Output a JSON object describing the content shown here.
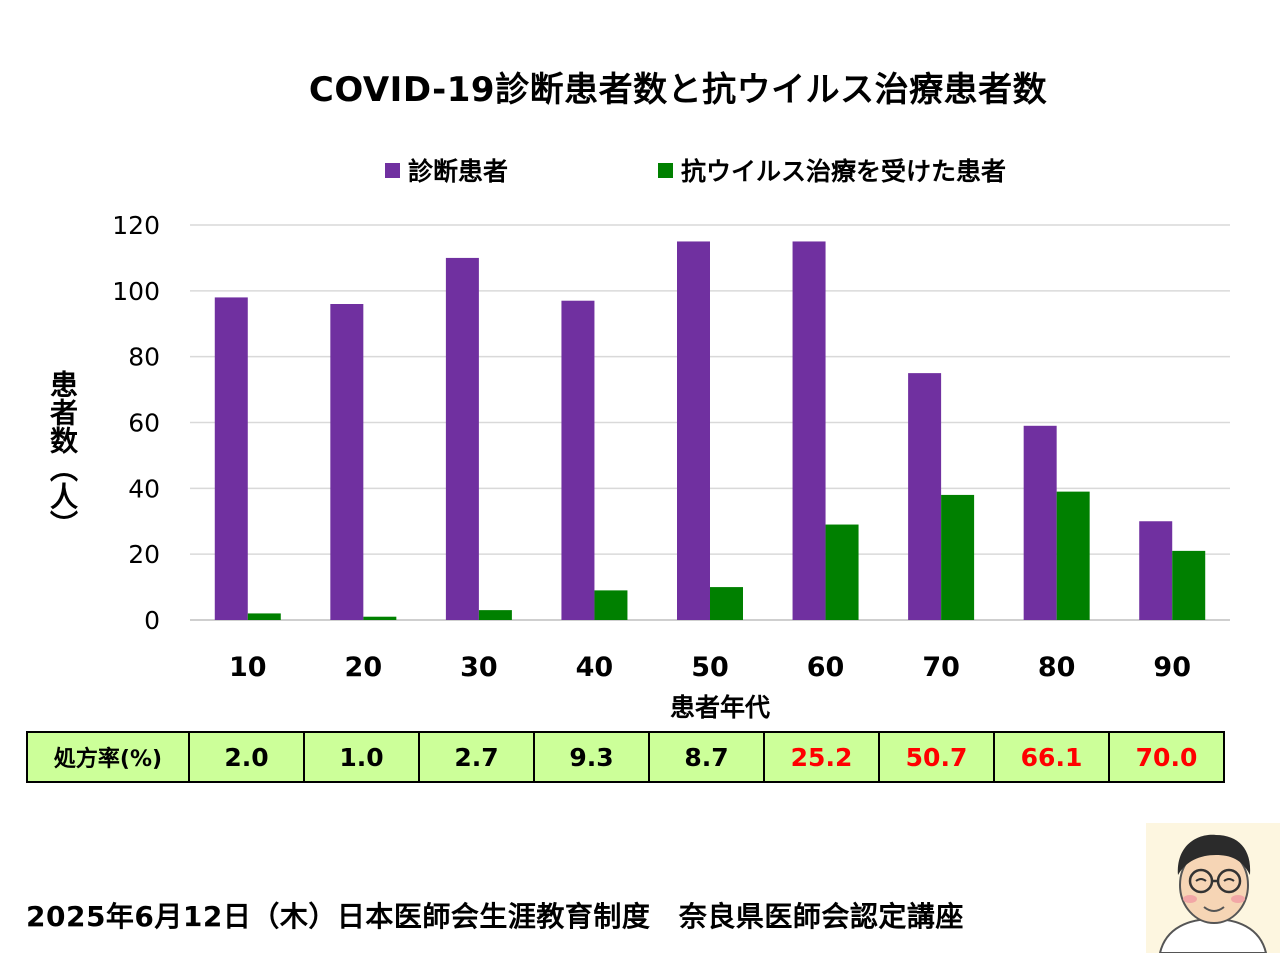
{
  "chart_data": {
    "type": "bar",
    "title": "COVID-19診断患者数と抗ウイルス治療患者数",
    "xlabel": "患者年代",
    "ylabel": "患者数（人）",
    "categories": [
      "10",
      "20",
      "30",
      "40",
      "50",
      "60",
      "70",
      "80",
      "90"
    ],
    "series": [
      {
        "name": "診断患者",
        "color": "#7030a0",
        "values": [
          98,
          96,
          110,
          97,
          115,
          115,
          75,
          59,
          30
        ]
      },
      {
        "name": "抗ウイルス治療を受けた患者",
        "color": "#008000",
        "values": [
          2,
          1,
          3,
          9,
          10,
          29,
          38,
          39,
          21
        ]
      }
    ],
    "ylim": [
      0,
      120
    ],
    "yticks": [
      0,
      20,
      40,
      60,
      80,
      100,
      120
    ],
    "grid": true,
    "legend": "top"
  },
  "rate_table": {
    "header": "処方率(%)",
    "values": [
      "2.0",
      "1.0",
      "2.7",
      "9.3",
      "8.7",
      "25.2",
      "50.7",
      "66.1",
      "70.0"
    ],
    "highlight_color": "#ff0000"
  },
  "footer": "2025年6月12日（木）日本医師会生涯教育制度　奈良県医師会認定講座"
}
